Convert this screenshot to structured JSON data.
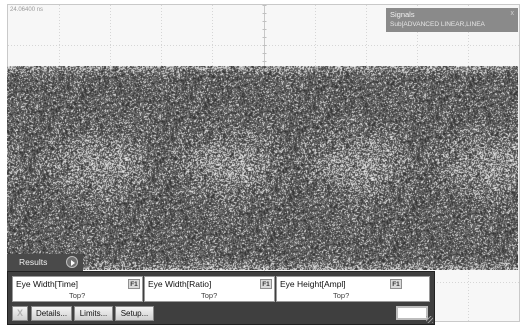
{
  "scope": {
    "time_readout": "24.06400 ns",
    "signals_title": "Signals",
    "signals_close": "x",
    "signals_source": "Sub[ADVANCED LINEAR,LINEA"
  },
  "results": {
    "tab_label": "Results",
    "measurements": [
      {
        "name": "Eye Width[Time]",
        "badge": "F1",
        "value": "Top?"
      },
      {
        "name": "Eye Width[Ratio]",
        "badge": "F1",
        "value": "Top?"
      },
      {
        "name": "Eye Height[Ampl]",
        "badge": "F1",
        "value": "Top?"
      }
    ],
    "clear_label": "X",
    "details_label": "Details...",
    "limits_label": "Limits...",
    "setup_label": "Setup..."
  }
}
